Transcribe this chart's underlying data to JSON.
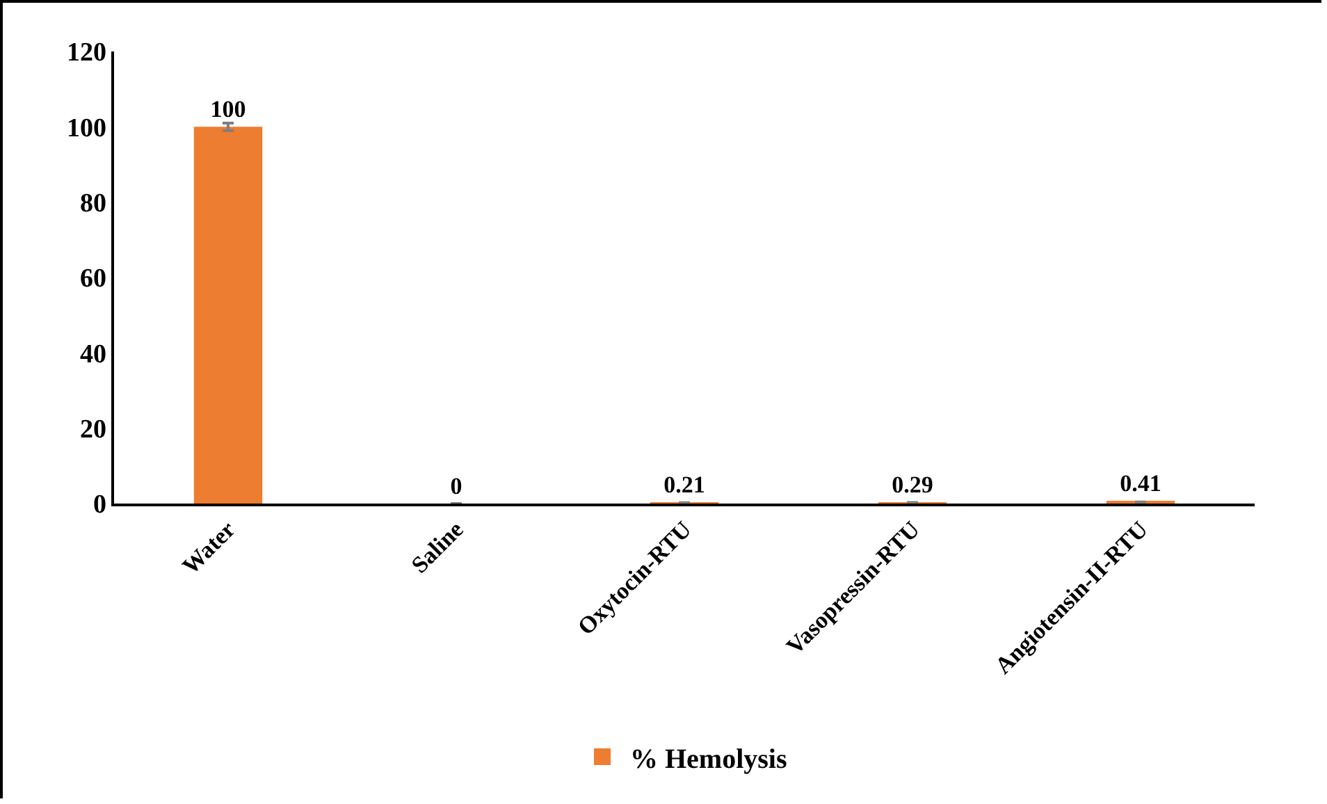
{
  "chart_data": {
    "type": "bar",
    "categories": [
      "Water",
      "Saline",
      "Oxytocin-RTU",
      "Vasopressin-RTU",
      "Angiotensin-II-RTU"
    ],
    "series": [
      {
        "name": "% Hemolysis",
        "color": "#ed7d31",
        "values": [
          100,
          0,
          0.21,
          0.29,
          0.41
        ],
        "errors": [
          1,
          null,
          null,
          null,
          null
        ]
      }
    ],
    "ylim": [
      0,
      120
    ],
    "yticks": [
      0,
      20,
      40,
      60,
      80,
      100,
      120
    ],
    "grid": false,
    "legend": "bottom",
    "data_labels": true
  }
}
